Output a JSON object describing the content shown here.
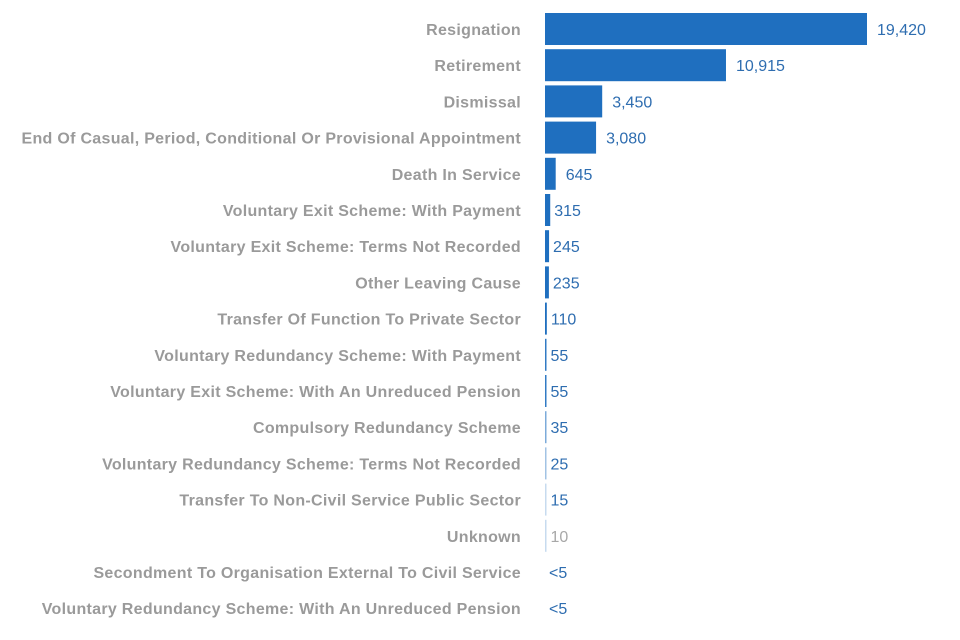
{
  "chart_data": {
    "type": "bar",
    "orientation": "horizontal",
    "title": "",
    "xlabel": "",
    "ylabel": "",
    "grid": false,
    "legend": "none",
    "colors": {
      "bar": "#1f6fbf",
      "value_text": "#2e6db0",
      "muted_text": "#a8a8a8"
    },
    "categories": [
      "Resignation",
      "Retirement",
      "Dismissal",
      "End Of Casual, Period, Conditional Or Provisional Appointment",
      "Death In Service",
      "Voluntary Exit Scheme: With Payment",
      "Voluntary Exit Scheme: Terms Not Recorded",
      "Other Leaving Cause",
      "Transfer Of Function To Private Sector",
      "Voluntary Redundancy Scheme: With Payment",
      "Voluntary Exit Scheme: With An Unreduced Pension",
      "Compulsory Redundancy Scheme",
      "Voluntary Redundancy Scheme: Terms Not Recorded",
      "Transfer To Non-Civil Service Public Sector",
      "Unknown",
      "Secondment To Organisation External To Civil Service",
      "Voluntary Redundancy Scheme: With An Unreduced Pension"
    ],
    "values": [
      19420,
      10915,
      3450,
      3080,
      645,
      315,
      245,
      235,
      110,
      55,
      55,
      35,
      25,
      15,
      10,
      0,
      0
    ],
    "value_labels": [
      "19,420",
      "10,915",
      "3,450",
      "3,080",
      "645",
      "315",
      "245",
      "235",
      "110",
      "55",
      "55",
      "35",
      "25",
      "15",
      "10",
      "<5",
      "<5"
    ],
    "xlim": [
      0,
      19420
    ]
  }
}
